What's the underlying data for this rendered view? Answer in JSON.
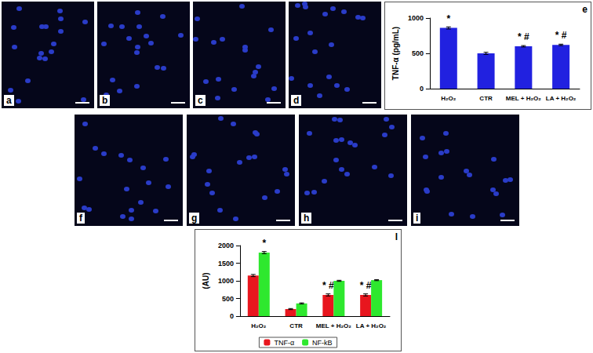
{
  "image_panels": [
    "a",
    "b",
    "c",
    "d",
    "f",
    "g",
    "h",
    "i"
  ],
  "chart_data": [
    {
      "panel": "e",
      "type": "bar",
      "categories": [
        "H₂O₂",
        "CTR",
        "MEL + H₂O₂",
        "LA + H₂O₂"
      ],
      "y_label": "TNF-α (pg/mL)",
      "series": [
        {
          "color": "#2121e0",
          "values": [
            860,
            500,
            600,
            620
          ],
          "errors": [
            15,
            15,
            10,
            10
          ]
        }
      ],
      "ylim": [
        0,
        1000
      ],
      "yticks": [
        0,
        500,
        1000
      ],
      "annotations": [
        {
          "category": "H₂O₂",
          "text": "*"
        },
        {
          "category": "MEL + H₂O₂",
          "text": "* #"
        },
        {
          "category": "LA + H₂O₂",
          "text": "* #"
        }
      ]
    },
    {
      "panel": "l",
      "type": "bar",
      "categories": [
        "H₂O₂",
        "CTR",
        "MEL + H₂O₂",
        "LA + H₂O₂"
      ],
      "y_label": "(AU)",
      "series": [
        {
          "name": "TNF-α",
          "color": "#e8161e",
          "values": [
            1150,
            200,
            600,
            600
          ],
          "errors": [
            30,
            15,
            30,
            30
          ]
        },
        {
          "name": "NF-kB",
          "color": "#2ee82e",
          "values": [
            1800,
            360,
            1000,
            1020
          ],
          "errors": [
            30,
            15,
            15,
            15
          ]
        }
      ],
      "ylim": [
        0,
        2000
      ],
      "yticks": [
        0,
        500,
        1000,
        1500,
        2000
      ],
      "legend": "bottom",
      "annotations": [
        {
          "category": "H₂O₂",
          "series": "NF-kB",
          "text": "*"
        },
        {
          "category": "MEL + H₂O₂",
          "series": "TNF-α",
          "text": "* #"
        },
        {
          "category": "LA + H₂O₂",
          "series": "TNF-α",
          "text": "* #"
        }
      ]
    }
  ]
}
